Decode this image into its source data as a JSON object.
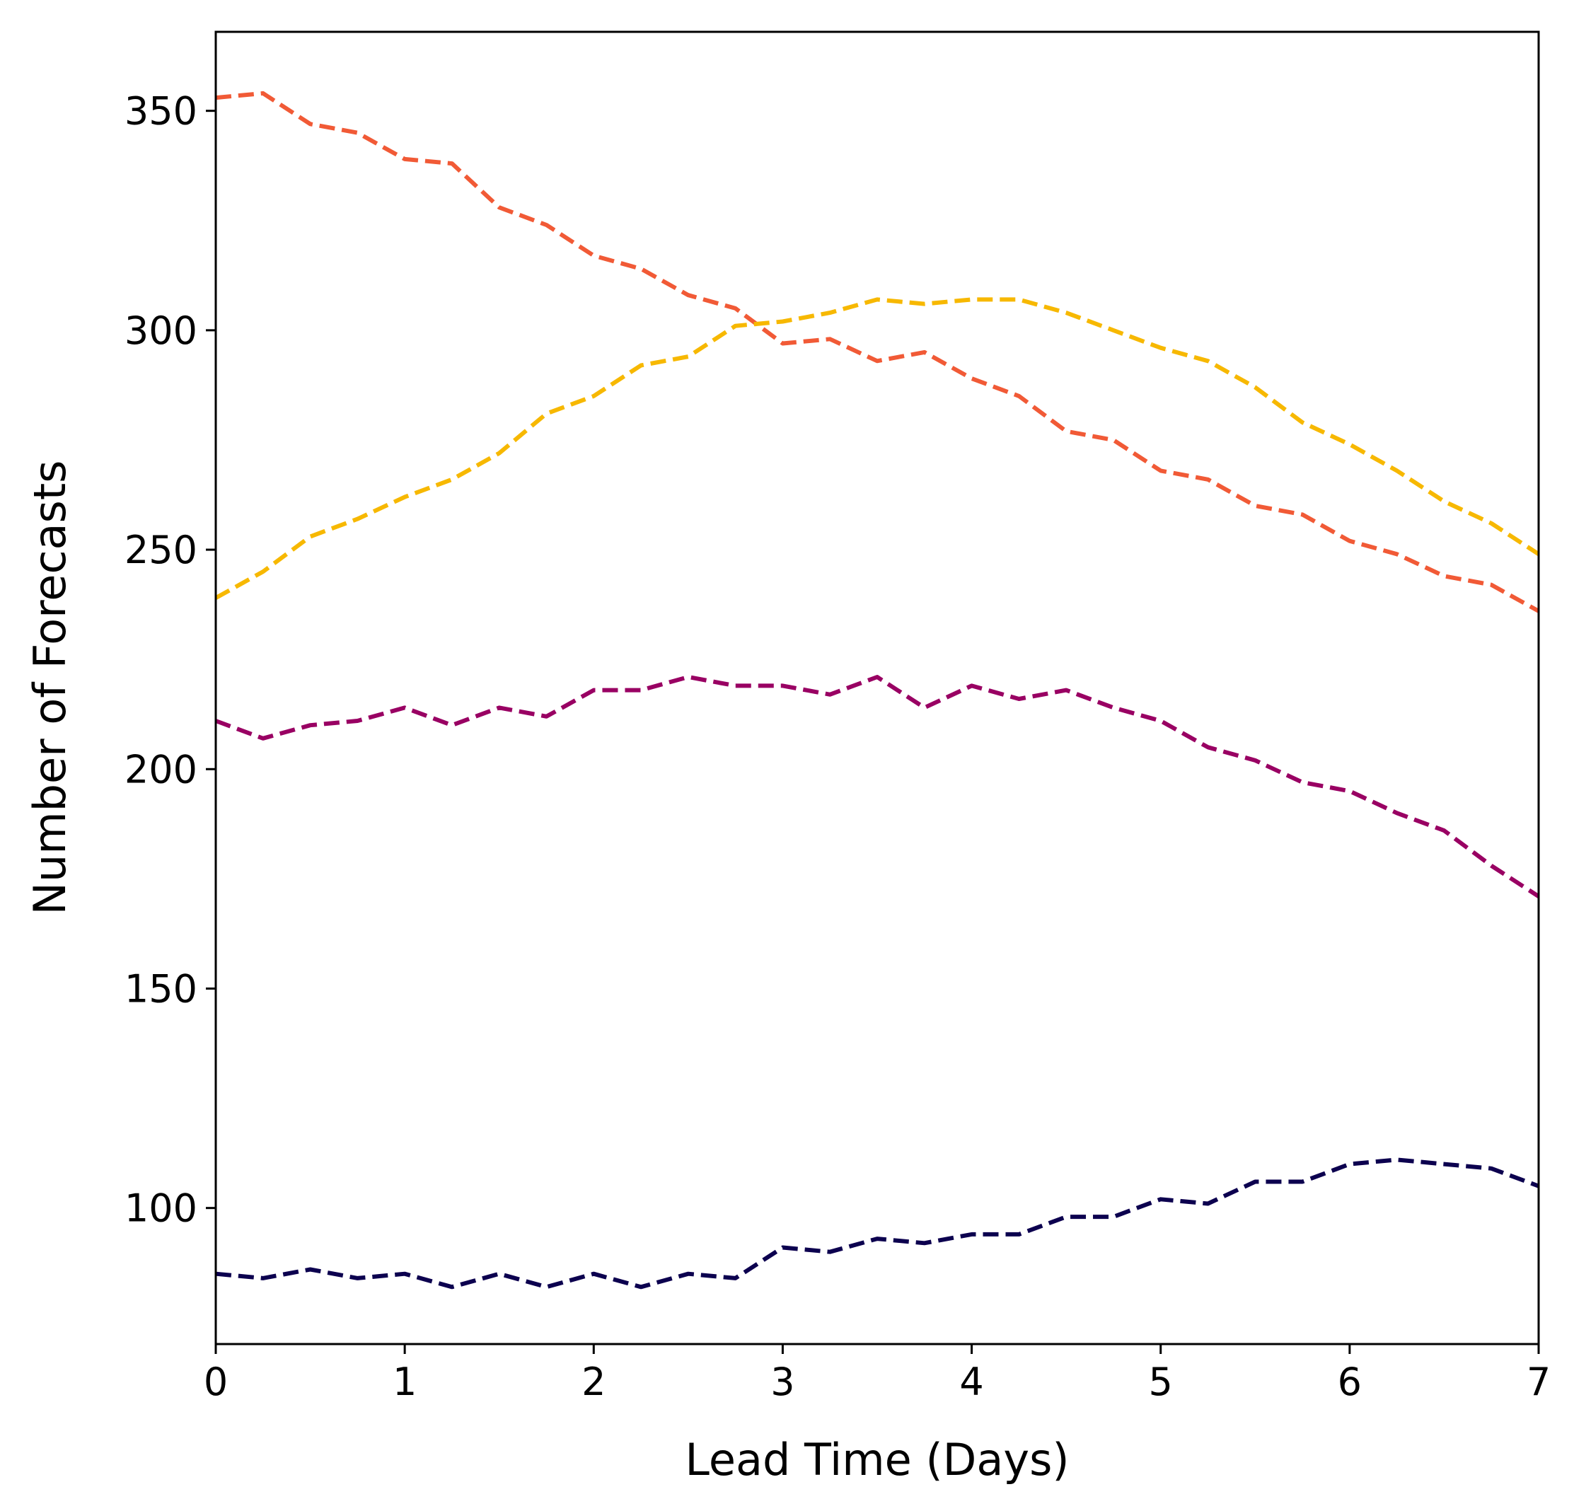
{
  "chart_data": {
    "type": "line",
    "title": "",
    "xlabel": "Lead Time (Days)",
    "ylabel": "Number of Forecasts",
    "xlim": [
      0,
      7
    ],
    "ylim": [
      69,
      368
    ],
    "xticks": [
      0,
      1,
      2,
      3,
      4,
      5,
      6,
      7
    ],
    "yticks": [
      100,
      150,
      200,
      250,
      300,
      350
    ],
    "grid": false,
    "legend": false,
    "line_style": "dashed",
    "x": [
      0,
      0.25,
      0.5,
      0.75,
      1,
      1.25,
      1.5,
      1.75,
      2,
      2.25,
      2.5,
      2.75,
      3,
      3.25,
      3.5,
      3.75,
      4,
      4.25,
      4.5,
      4.75,
      5,
      5.25,
      5.5,
      5.75,
      6,
      6.25,
      6.5,
      6.75,
      7
    ],
    "series": [
      {
        "color": "#f15a36",
        "values": [
          353,
          354,
          347,
          345,
          339,
          338,
          328,
          324,
          317,
          314,
          308,
          305,
          297,
          298,
          293,
          295,
          289,
          285,
          277,
          275,
          268,
          266,
          260,
          258,
          252,
          249,
          244,
          242,
          236
        ]
      },
      {
        "color": "#f7b800",
        "values": [
          239,
          245,
          253,
          257,
          262,
          266,
          272,
          281,
          285,
          292,
          294,
          301,
          302,
          304,
          307,
          306,
          307,
          307,
          304,
          300,
          296,
          293,
          287,
          279,
          274,
          268,
          261,
          256,
          249
        ]
      },
      {
        "color": "#990063",
        "values": [
          211,
          207,
          210,
          211,
          214,
          210,
          214,
          212,
          218,
          218,
          221,
          219,
          219,
          217,
          221,
          214,
          219,
          216,
          218,
          214,
          211,
          205,
          202,
          197,
          195,
          190,
          186,
          178,
          171
        ]
      },
      {
        "color": "#0c004f",
        "values": [
          85,
          84,
          86,
          84,
          85,
          82,
          85,
          82,
          85,
          82,
          85,
          84,
          91,
          90,
          93,
          92,
          94,
          94,
          98,
          98,
          102,
          101,
          106,
          106,
          110,
          111,
          110,
          109,
          105
        ]
      }
    ]
  }
}
